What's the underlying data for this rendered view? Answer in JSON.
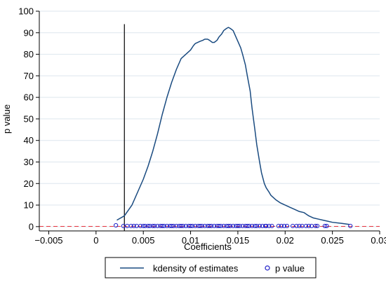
{
  "chart_data": {
    "type": "line",
    "xlabel": "Coefficients",
    "ylabel": "p value",
    "xlim": [
      -0.006,
      0.03
    ],
    "ylim": [
      -2,
      100
    ],
    "xticks": [
      -0.005,
      0,
      0.005,
      0.01,
      0.015,
      0.02,
      0.025,
      0.03
    ],
    "xtick_labels": [
      "−0.005",
      "0",
      "0.005",
      "0.01",
      "0.015",
      "0.02",
      "0.025",
      "0.03"
    ],
    "yticks": [
      0,
      10,
      20,
      30,
      40,
      50,
      60,
      70,
      80,
      90,
      100
    ],
    "ytick_labels": [
      "0",
      "10",
      "20",
      "30",
      "40",
      "50",
      "60",
      "70",
      "80",
      "90",
      "100"
    ],
    "grid": "horizontal",
    "legend_position": "bottom",
    "reference_lines": [
      {
        "orientation": "vertical",
        "value": 0.003,
        "color": "#000000",
        "style": "solid"
      },
      {
        "orientation": "horizontal",
        "value": 0.1,
        "color": "#e8343f",
        "style": "dashed"
      }
    ],
    "series": [
      {
        "name": "kdensity of estimates",
        "kind": "line",
        "color": "#1a4b80",
        "x": [
          0.0022,
          0.003,
          0.0038,
          0.0045,
          0.005,
          0.0055,
          0.006,
          0.0065,
          0.007,
          0.0075,
          0.008,
          0.0085,
          0.009,
          0.0095,
          0.01,
          0.0103,
          0.0105,
          0.011,
          0.0113,
          0.0115,
          0.0118,
          0.012,
          0.0123,
          0.0125,
          0.0128,
          0.013,
          0.0133,
          0.0135,
          0.0138,
          0.014,
          0.0142,
          0.0145,
          0.0148,
          0.015,
          0.0153,
          0.0155,
          0.0158,
          0.016,
          0.0163,
          0.0165,
          0.0168,
          0.017,
          0.0173,
          0.0175,
          0.0178,
          0.018,
          0.0183,
          0.0185,
          0.019,
          0.0195,
          0.02,
          0.0205,
          0.021,
          0.0215,
          0.022,
          0.0225,
          0.023,
          0.0235,
          0.024,
          0.0245,
          0.025,
          0.026,
          0.0268
        ],
        "y": [
          3,
          5,
          10,
          17,
          22,
          28,
          35,
          43,
          52,
          60,
          67,
          73,
          78,
          80,
          82,
          84,
          85,
          86,
          86.5,
          87,
          87,
          86.5,
          85.5,
          85.5,
          86.5,
          88,
          89.5,
          91,
          92,
          92.5,
          92,
          91,
          88,
          86,
          83,
          80,
          75,
          70,
          63,
          55,
          45,
          38,
          30,
          25,
          20,
          18,
          16,
          14.5,
          12.5,
          11,
          10,
          9,
          8,
          7,
          6.5,
          5,
          4,
          3.5,
          3,
          2.5,
          2,
          1.5,
          1
        ]
      },
      {
        "name": "p value",
        "kind": "scatter",
        "color": "#2020c8",
        "x": [
          0.0021,
          0.0029,
          0.0033,
          0.0037,
          0.004,
          0.0043,
          0.0047,
          0.005,
          0.0052,
          0.0055,
          0.0057,
          0.006,
          0.0062,
          0.0065,
          0.0068,
          0.007,
          0.0072,
          0.0075,
          0.0078,
          0.008,
          0.0082,
          0.0085,
          0.0088,
          0.009,
          0.0092,
          0.0095,
          0.0098,
          0.01,
          0.0102,
          0.0105,
          0.0108,
          0.011,
          0.0112,
          0.0115,
          0.0118,
          0.012,
          0.0122,
          0.0125,
          0.0128,
          0.013,
          0.0132,
          0.0135,
          0.0138,
          0.014,
          0.0142,
          0.0145,
          0.0148,
          0.015,
          0.0152,
          0.0155,
          0.0158,
          0.016,
          0.0162,
          0.0165,
          0.0168,
          0.017,
          0.0173,
          0.0176,
          0.0179,
          0.018,
          0.0183,
          0.0186,
          0.0193,
          0.0196,
          0.0199,
          0.0202,
          0.0208,
          0.0212,
          0.0215,
          0.0218,
          0.0222,
          0.0225,
          0.0228,
          0.0232,
          0.0234,
          0.0242,
          0.0244,
          0.0269
        ],
        "y": [
          0.6,
          0.3,
          0.3,
          0.3,
          0.3,
          0.3,
          0.3,
          0.3,
          0.3,
          0.3,
          0.3,
          0.3,
          0.3,
          0.3,
          0.3,
          0.3,
          0.3,
          0.3,
          0.3,
          0.3,
          0.3,
          0.3,
          0.3,
          0.3,
          0.3,
          0.3,
          0.3,
          0.3,
          0.3,
          0.3,
          0.3,
          0.3,
          0.3,
          0.3,
          0.3,
          0.3,
          0.3,
          0.3,
          0.3,
          0.3,
          0.3,
          0.3,
          0.3,
          0.3,
          0.3,
          0.3,
          0.3,
          0.3,
          0.3,
          0.3,
          0.3,
          0.3,
          0.3,
          0.3,
          0.3,
          0.3,
          0.3,
          0.3,
          0.3,
          0.3,
          0.3,
          0.3,
          0.3,
          0.3,
          0.3,
          0.3,
          0.3,
          0.3,
          0.3,
          0.3,
          0.3,
          0.3,
          0.3,
          0.3,
          0.3,
          0.3,
          0.3,
          0.3
        ]
      }
    ],
    "legend": [
      {
        "label": "kdensity of estimates",
        "symbol": "line",
        "color": "#1a4b80"
      },
      {
        "label": "p value",
        "symbol": "circle",
        "color": "#2020c8"
      }
    ]
  }
}
